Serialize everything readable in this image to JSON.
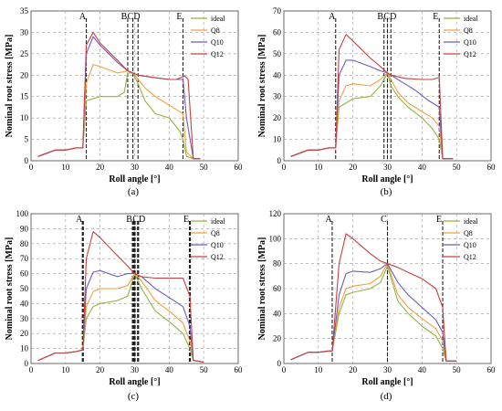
{
  "colors": {
    "ideal": "#93b340",
    "Q8": "#f0a040",
    "Q10": "#6c5cc0",
    "Q12": "#c84040"
  },
  "chart_data": [
    {
      "type": "line",
      "panel": "(a)",
      "xlabel": "Roll angle [°]",
      "ylabel": "Nominal root stress [MPa]",
      "xlim": [
        0,
        60
      ],
      "ylim": [
        0,
        35
      ],
      "xticks": [
        0,
        10,
        20,
        30,
        40,
        50,
        60
      ],
      "yticks": [
        0,
        5,
        10,
        15,
        20,
        25,
        30,
        35
      ],
      "events": [
        {
          "label": "A",
          "x": 16
        },
        {
          "label": "B",
          "x": 28
        },
        {
          "label": "C",
          "x": 29.5
        },
        {
          "label": "D",
          "x": 31
        },
        {
          "label": "E",
          "x": 44
        }
      ],
      "series": [
        {
          "name": "ideal",
          "x": [
            2,
            7,
            10,
            13,
            15,
            16,
            20,
            25,
            27,
            28,
            29.5,
            31,
            33,
            36,
            40,
            42,
            43,
            44,
            45,
            47,
            49
          ],
          "y": [
            1,
            2.5,
            2.5,
            3,
            3,
            14,
            15,
            15,
            16,
            20.5,
            20.5,
            18,
            14,
            11,
            10,
            8,
            7,
            5,
            1,
            0.5,
            0.5
          ]
        },
        {
          "name": "Q8",
          "x": [
            2,
            7,
            10,
            13,
            15,
            16,
            18,
            20,
            25,
            28,
            29.5,
            31,
            33,
            36,
            40,
            42,
            44,
            45,
            47,
            49
          ],
          "y": [
            1,
            2.5,
            2.5,
            3,
            3,
            18,
            22.5,
            22,
            20.5,
            21,
            20.5,
            19,
            17,
            15,
            13,
            12,
            11,
            2,
            0.5,
            0.5
          ]
        },
        {
          "name": "Q10",
          "x": [
            2,
            7,
            10,
            13,
            15,
            16,
            18,
            20,
            25,
            28,
            29.5,
            31,
            35,
            40,
            42,
            44,
            45,
            47,
            49
          ],
          "y": [
            1,
            2.5,
            2.5,
            3,
            3,
            25,
            29,
            27,
            23,
            21,
            20.5,
            20,
            19.5,
            19,
            19,
            19,
            10,
            0.5,
            0.5
          ]
        },
        {
          "name": "Q12",
          "x": [
            2,
            7,
            10,
            13,
            15,
            16,
            18,
            20,
            25,
            28,
            29.5,
            31,
            35,
            40,
            42,
            44.5,
            45.5,
            47,
            49
          ],
          "y": [
            1,
            2.5,
            2.5,
            3,
            3,
            27,
            30,
            27.5,
            23.5,
            21,
            20.5,
            20,
            19.5,
            19,
            19,
            19.8,
            19,
            0.5,
            0.5
          ]
        }
      ]
    },
    {
      "type": "line",
      "panel": "(b)",
      "xlabel": "Roll angle [°]",
      "ylabel": "Nominal root stress [MPa]",
      "xlim": [
        0,
        60
      ],
      "ylim": [
        0,
        70
      ],
      "xticks": [
        0,
        10,
        20,
        30,
        40,
        50,
        60
      ],
      "yticks": [
        0,
        10,
        20,
        30,
        40,
        50,
        60,
        70
      ],
      "events": [
        {
          "label": "A",
          "x": 15
        },
        {
          "label": "B",
          "x": 29
        },
        {
          "label": "C",
          "x": 30
        },
        {
          "label": "D",
          "x": 31
        },
        {
          "label": "E",
          "x": 45
        }
      ],
      "series": [
        {
          "name": "ideal",
          "x": [
            2,
            7,
            10,
            13,
            15,
            16,
            20,
            25,
            28,
            30,
            31,
            33,
            36,
            40,
            43,
            45,
            46,
            49
          ],
          "y": [
            2,
            5,
            5,
            6,
            6,
            25,
            29,
            30,
            35,
            41,
            35,
            30,
            25,
            20,
            15,
            10,
            1,
            1
          ]
        },
        {
          "name": "Q8",
          "x": [
            2,
            7,
            10,
            13,
            15,
            16,
            18,
            20,
            25,
            28,
            30,
            31,
            33,
            36,
            40,
            43,
            45,
            46,
            49
          ],
          "y": [
            2,
            5,
            5,
            6,
            6,
            28,
            35,
            36,
            35,
            38,
            41,
            38,
            32,
            27,
            23,
            20,
            16,
            1,
            1
          ]
        },
        {
          "name": "Q10",
          "x": [
            2,
            7,
            10,
            13,
            15,
            16,
            18,
            20,
            25,
            28,
            30,
            31,
            34,
            38,
            42,
            45,
            46,
            49
          ],
          "y": [
            2,
            5,
            5,
            6,
            6,
            40,
            47,
            47,
            44,
            42,
            41,
            40,
            37,
            33,
            28,
            25,
            1,
            1
          ]
        },
        {
          "name": "Q12",
          "x": [
            2,
            7,
            10,
            13,
            15,
            16,
            18,
            20,
            25,
            28,
            30,
            31,
            35,
            40,
            43,
            45,
            46,
            49
          ],
          "y": [
            2,
            5,
            5,
            6,
            6,
            52,
            59,
            56,
            48,
            44,
            41,
            40,
            38.5,
            38,
            38,
            39,
            1,
            1
          ]
        }
      ]
    },
    {
      "type": "line",
      "panel": "(c)",
      "xlabel": "Roll angle [°]",
      "ylabel": "Nominal root stress [MPa]",
      "xlim": [
        0,
        60
      ],
      "ylim": [
        0,
        100
      ],
      "xticks": [
        0,
        10,
        20,
        30,
        40,
        50,
        60
      ],
      "yticks": [
        0,
        10,
        20,
        30,
        40,
        50,
        60,
        70,
        80,
        90,
        100
      ],
      "events": [
        {
          "label": "A",
          "x": 15
        },
        {
          "label": "B",
          "x": 29.5
        },
        {
          "label": "C",
          "x": 30
        },
        {
          "label": "D",
          "x": 31
        },
        {
          "label": "E",
          "x": 46
        }
      ],
      "series": [
        {
          "name": "ideal",
          "x": [
            2,
            7,
            10,
            13,
            15,
            16,
            18,
            20,
            25,
            28,
            30,
            32,
            36,
            40,
            44,
            46,
            47,
            50
          ],
          "y": [
            2,
            7,
            7,
            8,
            9,
            30,
            38,
            40,
            42,
            45,
            60,
            50,
            35,
            28,
            20,
            10,
            2,
            1
          ]
        },
        {
          "name": "Q8",
          "x": [
            2,
            7,
            10,
            13,
            15,
            16,
            18,
            20,
            25,
            28,
            30,
            32,
            36,
            40,
            44,
            46,
            47,
            50
          ],
          "y": [
            2,
            7,
            7,
            8,
            9,
            38,
            48,
            50,
            50,
            52,
            60,
            55,
            42,
            35,
            27,
            15,
            2,
            1
          ]
        },
        {
          "name": "Q10",
          "x": [
            2,
            7,
            10,
            13,
            15,
            16,
            18,
            20,
            25,
            28,
            30,
            32,
            36,
            40,
            44,
            46,
            47,
            50
          ],
          "y": [
            2,
            7,
            7,
            8,
            9,
            50,
            61,
            62,
            58,
            60,
            60,
            58,
            50,
            44,
            38,
            25,
            2,
            1
          ]
        },
        {
          "name": "Q12",
          "x": [
            2,
            7,
            10,
            13,
            15,
            16,
            18,
            20,
            25,
            28,
            30,
            32,
            36,
            40,
            44,
            46,
            47,
            50
          ],
          "y": [
            2,
            7,
            7,
            8,
            9,
            70,
            88,
            84,
            72,
            65,
            60,
            58,
            57,
            57,
            57,
            45,
            2,
            1
          ]
        }
      ]
    },
    {
      "type": "line",
      "panel": "(d)",
      "xlabel": "Roll angle [°]",
      "ylabel": "Nominal root stress [MPa]",
      "xlim": [
        0,
        60
      ],
      "ylim": [
        0,
        120
      ],
      "xticks": [
        0,
        10,
        20,
        30,
        40,
        50,
        60
      ],
      "yticks": [
        0,
        20,
        40,
        60,
        80,
        100,
        120
      ],
      "events": [
        {
          "label": "A",
          "x": 14
        },
        {
          "label": "C",
          "x": 30
        },
        {
          "label": "E",
          "x": 46
        }
      ],
      "series": [
        {
          "name": "ideal",
          "x": [
            2,
            7,
            10,
            13,
            14,
            16,
            18,
            20,
            25,
            28,
            30,
            33,
            36,
            40,
            44,
            46,
            47,
            50
          ],
          "y": [
            3,
            9,
            9,
            10,
            10,
            40,
            55,
            57,
            60,
            65,
            78,
            50,
            40,
            30,
            22,
            12,
            2,
            2
          ]
        },
        {
          "name": "Q8",
          "x": [
            2,
            7,
            10,
            13,
            14,
            16,
            18,
            20,
            25,
            28,
            30,
            33,
            36,
            40,
            44,
            46,
            47,
            50
          ],
          "y": [
            3,
            9,
            9,
            10,
            10,
            45,
            60,
            62,
            64,
            70,
            80,
            55,
            45,
            36,
            28,
            18,
            2,
            2
          ]
        },
        {
          "name": "Q10",
          "x": [
            2,
            7,
            10,
            13,
            14,
            16,
            18,
            20,
            25,
            28,
            30,
            33,
            36,
            40,
            44,
            46,
            47,
            50
          ],
          "y": [
            3,
            9,
            9,
            10,
            10,
            55,
            72,
            74,
            73,
            76,
            80,
            65,
            55,
            45,
            35,
            25,
            2,
            2
          ]
        },
        {
          "name": "Q12",
          "x": [
            2,
            7,
            10,
            13,
            14,
            16,
            18,
            20,
            25,
            28,
            30,
            33,
            36,
            40,
            44,
            46,
            47,
            50
          ],
          "y": [
            3,
            9,
            9,
            10,
            10,
            80,
            104,
            100,
            88,
            82,
            80,
            77,
            73,
            68,
            60,
            45,
            2,
            2
          ]
        }
      ]
    }
  ]
}
